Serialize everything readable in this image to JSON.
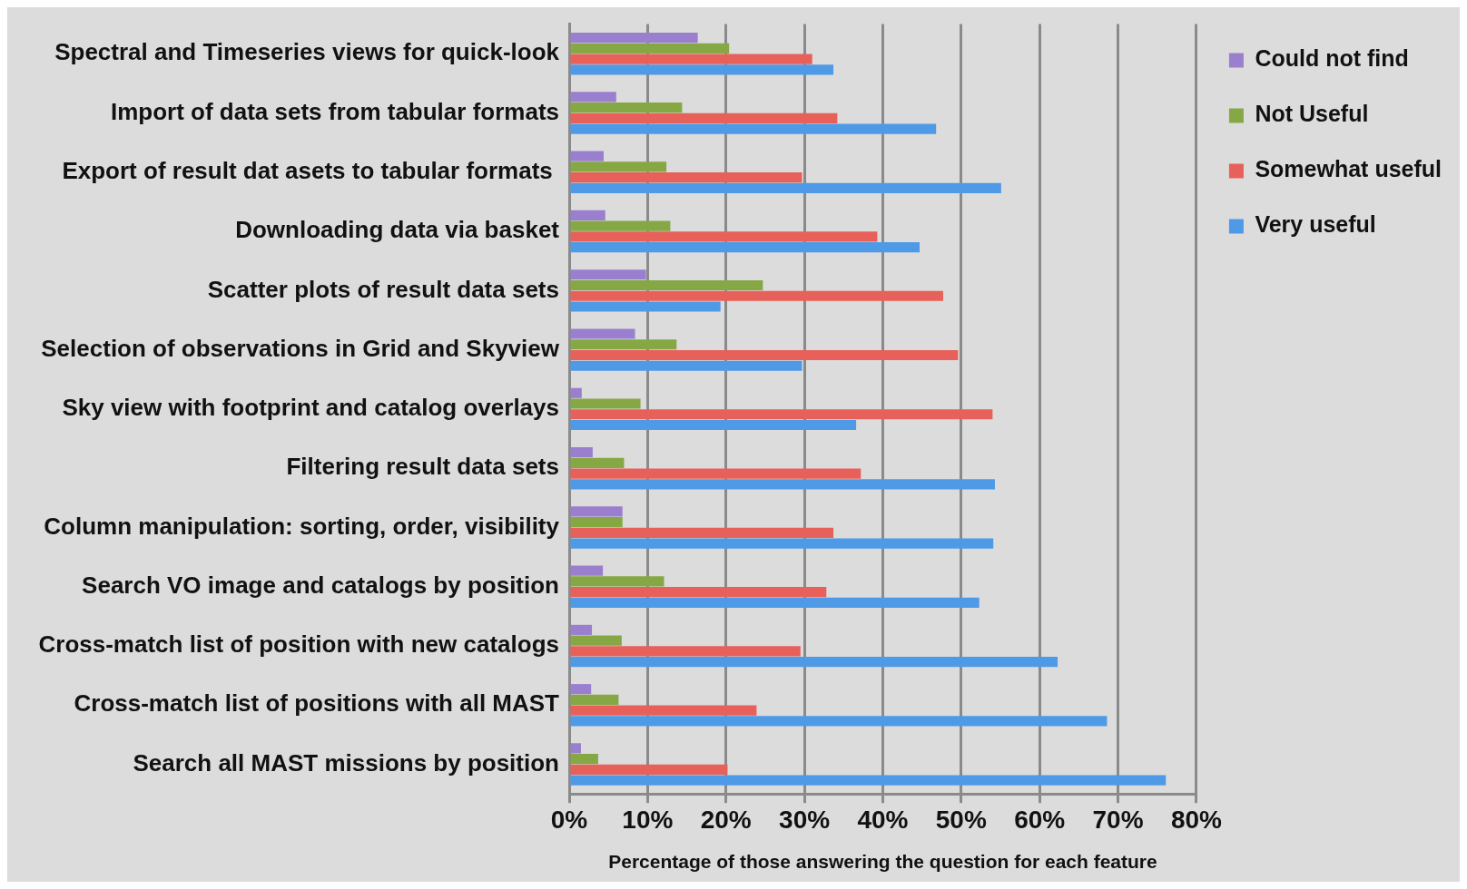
{
  "chart_data": {
    "type": "bar",
    "orientation": "horizontal",
    "xlabel": "Percentage of those answering the question for each feature",
    "categories": [
      "Spectral and Timeseries views for quick-look",
      "Import of data sets from tabular formats",
      "Export of result dat asets to tabular formats ",
      "Downloading data via basket",
      "Scatter plots of result data sets",
      "Selection of observations in Grid and Skyview",
      "Sky view with footprint and catalog overlays",
      "Filtering result data sets",
      "Column manipulation: sorting, order, visibility",
      "Search VO image and catalogs by position",
      "Cross-match list of position with new catalogs",
      "Cross-match list of positions with all MAST",
      "Search all MAST missions by position"
    ],
    "series": [
      {
        "name": "Could not find",
        "color": "#9b7fcf",
        "values": [
          16.4,
          6.0,
          4.4,
          4.6,
          9.8,
          8.4,
          1.6,
          3.0,
          6.8,
          4.3,
          2.9,
          2.8,
          1.5
        ]
      },
      {
        "name": "Not Useful",
        "color": "#86a844",
        "values": [
          20.4,
          14.4,
          12.4,
          12.9,
          24.7,
          13.7,
          9.1,
          7.0,
          6.8,
          12.1,
          6.7,
          6.3,
          3.7
        ]
      },
      {
        "name": "Somewhat useful",
        "color": "#e8605a",
        "values": [
          31.0,
          34.2,
          29.7,
          39.3,
          47.7,
          49.6,
          54.0,
          37.2,
          33.7,
          32.8,
          29.5,
          23.9,
          20.2
        ]
      },
      {
        "name": "Very useful",
        "color": "#4f9ae6",
        "values": [
          33.7,
          46.8,
          55.1,
          44.7,
          19.3,
          29.7,
          36.6,
          54.3,
          54.1,
          52.3,
          62.3,
          68.6,
          76.1
        ]
      }
    ],
    "xlim": [
      0,
      80
    ],
    "xticks": [
      {
        "value": 0,
        "label": "0%"
      },
      {
        "value": 10,
        "label": "10%"
      },
      {
        "value": 20,
        "label": "20%"
      },
      {
        "value": 30,
        "label": "30%"
      },
      {
        "value": 40,
        "label": "40%"
      },
      {
        "value": 50,
        "label": "50%"
      },
      {
        "value": 60,
        "label": "60%"
      },
      {
        "value": 70,
        "label": "70%"
      },
      {
        "value": 80,
        "label": "80%"
      }
    ],
    "grid": "x",
    "legend": "top right"
  }
}
